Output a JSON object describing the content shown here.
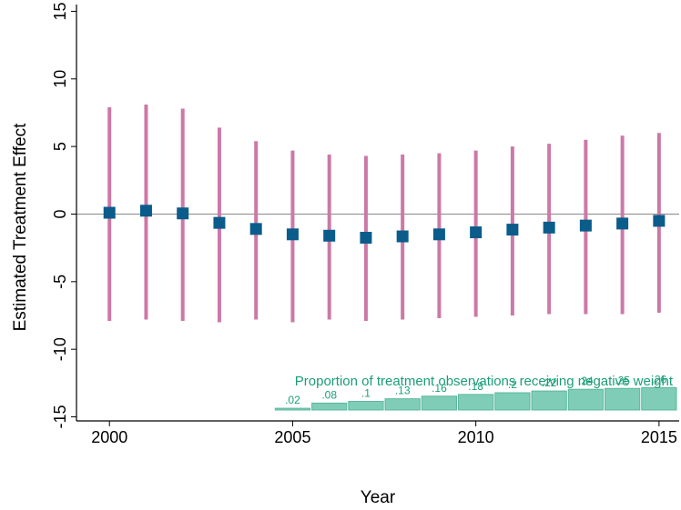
{
  "chart_data": {
    "type": "scatter",
    "xlabel": "Year",
    "ylabel": "Estimated Treatment Effect",
    "xlim": [
      1999.1,
      2015.55
    ],
    "ylim": [
      -15.3,
      15.5
    ],
    "x_ticks": [
      {
        "value": 2000,
        "label": "2000"
      },
      {
        "value": 2005,
        "label": "2005"
      },
      {
        "value": 2010,
        "label": "2010"
      },
      {
        "value": 2015,
        "label": "2015"
      }
    ],
    "y_ticks": [
      {
        "value": -15,
        "label": "-15"
      },
      {
        "value": -10,
        "label": "-10"
      },
      {
        "value": -5,
        "label": "-5"
      },
      {
        "value": 0,
        "label": "0"
      },
      {
        "value": 5,
        "label": "5"
      },
      {
        "value": 10,
        "label": "10"
      },
      {
        "value": 15,
        "label": "15"
      }
    ],
    "reference_line_y": 0,
    "estimates": [
      {
        "year": 2000,
        "estimate": 0.1,
        "ci_low": -7.9,
        "ci_high": 7.9
      },
      {
        "year": 2001,
        "estimate": 0.25,
        "ci_low": -7.8,
        "ci_high": 8.1
      },
      {
        "year": 2002,
        "estimate": 0.05,
        "ci_low": -7.9,
        "ci_high": 7.8
      },
      {
        "year": 2003,
        "estimate": -0.65,
        "ci_low": -8.0,
        "ci_high": 6.4
      },
      {
        "year": 2004,
        "estimate": -1.1,
        "ci_low": -7.8,
        "ci_high": 5.4
      },
      {
        "year": 2005,
        "estimate": -1.5,
        "ci_low": -8.0,
        "ci_high": 4.7
      },
      {
        "year": 2006,
        "estimate": -1.6,
        "ci_low": -7.8,
        "ci_high": 4.4
      },
      {
        "year": 2007,
        "estimate": -1.75,
        "ci_low": -7.9,
        "ci_high": 4.3
      },
      {
        "year": 2008,
        "estimate": -1.65,
        "ci_low": -7.8,
        "ci_high": 4.4
      },
      {
        "year": 2009,
        "estimate": -1.5,
        "ci_low": -7.7,
        "ci_high": 4.5
      },
      {
        "year": 2010,
        "estimate": -1.35,
        "ci_low": -7.6,
        "ci_high": 4.7
      },
      {
        "year": 2011,
        "estimate": -1.15,
        "ci_low": -7.5,
        "ci_high": 5.0
      },
      {
        "year": 2012,
        "estimate": -1.0,
        "ci_low": -7.4,
        "ci_high": 5.2
      },
      {
        "year": 2013,
        "estimate": -0.85,
        "ci_low": -7.4,
        "ci_high": 5.5
      },
      {
        "year": 2014,
        "estimate": -0.7,
        "ci_low": -7.4,
        "ci_high": 5.8
      },
      {
        "year": 2015,
        "estimate": -0.5,
        "ci_low": -7.3,
        "ci_high": 6.0
      }
    ],
    "weights_annotation": "Proportion of treatment observations receiving negative weight",
    "negative_weights": [
      {
        "year": 2005,
        "value": 0.02,
        "label": ".02"
      },
      {
        "year": 2006,
        "value": 0.08,
        "label": ".08"
      },
      {
        "year": 2007,
        "value": 0.1,
        "label": ".1"
      },
      {
        "year": 2008,
        "value": 0.13,
        "label": ".13"
      },
      {
        "year": 2009,
        "value": 0.16,
        "label": ".16"
      },
      {
        "year": 2010,
        "value": 0.18,
        "label": ".18"
      },
      {
        "year": 2011,
        "value": 0.2,
        "label": ".2"
      },
      {
        "year": 2012,
        "value": 0.22,
        "label": ".22"
      },
      {
        "year": 2013,
        "value": 0.24,
        "label": ".24"
      },
      {
        "year": 2014,
        "value": 0.25,
        "label": ".25"
      },
      {
        "year": 2015,
        "value": 0.26,
        "label": ".26"
      }
    ],
    "colors": {
      "ci_bar": "#cc79a7",
      "point": "#0a5c8a",
      "weight_bar": "#7fcdb6",
      "weight_bar_edge": "#5bb89c",
      "weight_text": "#1a9e77",
      "axis": "#000000",
      "reference_line": "#888888"
    }
  }
}
